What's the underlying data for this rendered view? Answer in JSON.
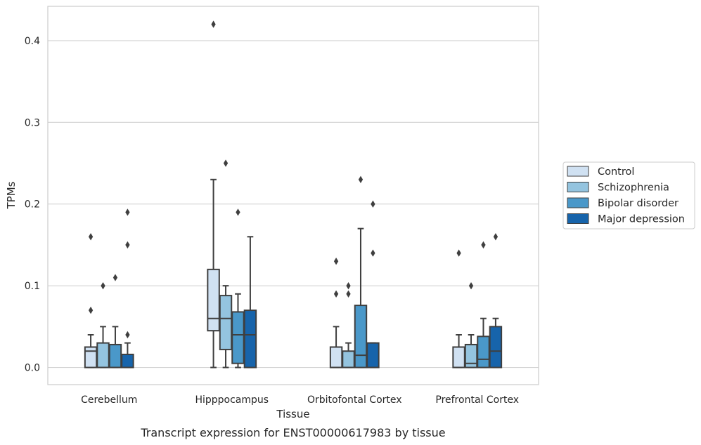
{
  "chart_data": {
    "type": "box",
    "xlabel": "Tissue",
    "ylabel": "TPMs",
    "caption": "Transcript expression for ENST00000617983 by tissue",
    "ylim": [
      -0.021,
      0.442
    ],
    "yticks": [
      "0.0",
      "0.1",
      "0.2",
      "0.3",
      "0.4"
    ],
    "grid": "horizontal",
    "legend_position": "right",
    "categories": [
      "Cerebellum",
      "Hipppocampus",
      "Orbitofontal Cortex",
      "Prefrontal Cortex"
    ],
    "series": [
      {
        "name": "Control",
        "color": "#d0e1f2",
        "boxes": [
          {
            "q1": 0.0,
            "median": 0.02,
            "q3": 0.025,
            "whisker_low": 0.0,
            "whisker_high": 0.04,
            "outliers": [
              0.07,
              0.16
            ]
          },
          {
            "q1": 0.045,
            "median": 0.06,
            "q3": 0.12,
            "whisker_low": 0.0,
            "whisker_high": 0.23,
            "outliers": [
              0.42
            ]
          },
          {
            "q1": 0.0,
            "median": 0.0,
            "q3": 0.025,
            "whisker_low": 0.0,
            "whisker_high": 0.05,
            "outliers": [
              0.09,
              0.13
            ]
          },
          {
            "q1": 0.0,
            "median": 0.0,
            "q3": 0.025,
            "whisker_low": 0.0,
            "whisker_high": 0.04,
            "outliers": [
              0.14
            ]
          }
        ]
      },
      {
        "name": "Schizophrenia",
        "color": "#94c4df",
        "boxes": [
          {
            "q1": 0.0,
            "median": 0.0,
            "q3": 0.03,
            "whisker_low": 0.0,
            "whisker_high": 0.05,
            "outliers": [
              0.1
            ]
          },
          {
            "q1": 0.022,
            "median": 0.06,
            "q3": 0.088,
            "whisker_low": 0.0,
            "whisker_high": 0.1,
            "outliers": [
              0.25
            ]
          },
          {
            "q1": 0.0,
            "median": 0.0,
            "q3": 0.02,
            "whisker_low": 0.0,
            "whisker_high": 0.03,
            "outliers": [
              0.09,
              0.1
            ]
          },
          {
            "q1": 0.0,
            "median": 0.005,
            "q3": 0.028,
            "whisker_low": 0.0,
            "whisker_high": 0.04,
            "outliers": [
              0.1
            ]
          }
        ]
      },
      {
        "name": "Bipolar disorder",
        "color": "#4a98c9",
        "boxes": [
          {
            "q1": 0.0,
            "median": 0.0,
            "q3": 0.028,
            "whisker_low": 0.0,
            "whisker_high": 0.05,
            "outliers": [
              0.11
            ]
          },
          {
            "q1": 0.005,
            "median": 0.04,
            "q3": 0.068,
            "whisker_low": 0.0,
            "whisker_high": 0.09,
            "outliers": [
              0.19
            ]
          },
          {
            "q1": 0.0,
            "median": 0.015,
            "q3": 0.076,
            "whisker_low": 0.0,
            "whisker_high": 0.17,
            "outliers": [
              0.23
            ]
          },
          {
            "q1": 0.0,
            "median": 0.01,
            "q3": 0.038,
            "whisker_low": 0.0,
            "whisker_high": 0.06,
            "outliers": [
              0.15
            ]
          }
        ]
      },
      {
        "name": "Major depression",
        "color": "#1764ab",
        "boxes": [
          {
            "q1": 0.0,
            "median": 0.0,
            "q3": 0.016,
            "whisker_low": 0.0,
            "whisker_high": 0.03,
            "outliers": [
              0.04,
              0.15,
              0.19
            ]
          },
          {
            "q1": 0.0,
            "median": 0.04,
            "q3": 0.07,
            "whisker_low": 0.0,
            "whisker_high": 0.16,
            "outliers": []
          },
          {
            "q1": 0.0,
            "median": 0.0,
            "q3": 0.03,
            "whisker_low": 0.0,
            "whisker_high": 0.03,
            "outliers": [
              0.14,
              0.2
            ]
          },
          {
            "q1": 0.0,
            "median": 0.02,
            "q3": 0.05,
            "whisker_low": 0.0,
            "whisker_high": 0.06,
            "outliers": [
              0.16
            ]
          }
        ]
      }
    ]
  }
}
